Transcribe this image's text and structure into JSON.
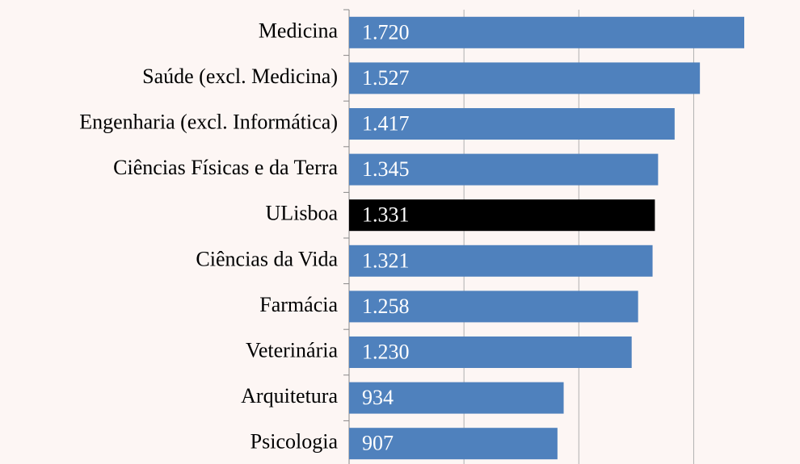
{
  "chart_data": {
    "type": "hbar",
    "categories": [
      "Medicina",
      "Saúde (excl. Medicina)",
      "Engenharia (excl. Informática)",
      "Ciências Físicas e da Terra",
      "ULisboa",
      "Ciências da Vida",
      "Farmácia",
      "Veterinária",
      "Arquitetura",
      "Psicologia"
    ],
    "values": [
      1720,
      1527,
      1417,
      1345,
      1331,
      1321,
      1258,
      1230,
      934,
      907
    ],
    "value_labels": [
      "1.720",
      "1.527",
      "1.417",
      "1.345",
      "1.331",
      "1.321",
      "1.258",
      "1.230",
      "934",
      "907"
    ],
    "colors": [
      "#4f81bd",
      "#4f81bd",
      "#4f81bd",
      "#4f81bd",
      "#000000",
      "#4f81bd",
      "#4f81bd",
      "#4f81bd",
      "#4f81bd",
      "#4f81bd"
    ],
    "xlim": [
      0,
      1900
    ],
    "xticks": [
      0,
      500,
      1000,
      1500
    ],
    "grid": true
  }
}
